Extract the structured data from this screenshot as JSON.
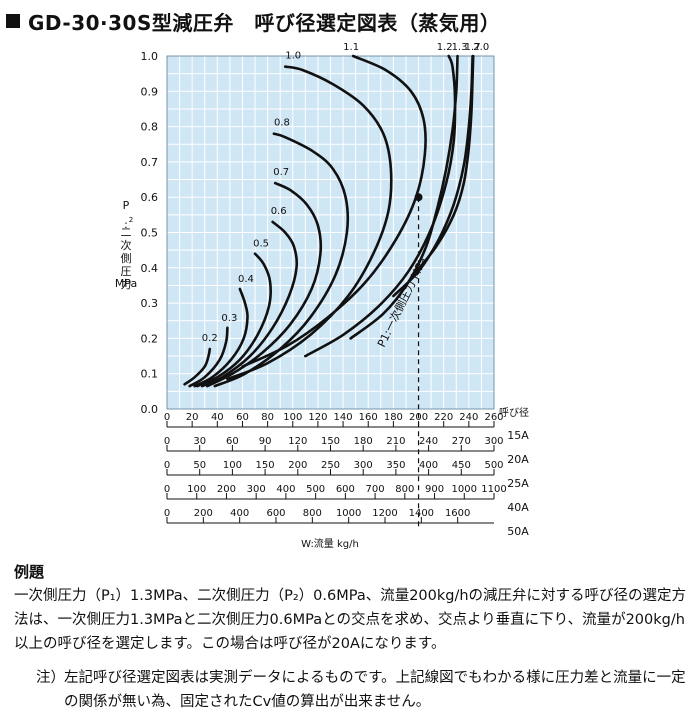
{
  "title": "GD-30·30S型減圧弁　呼び径選定図表（蒸気用）",
  "chart_data": {
    "type": "line",
    "y_axis": {
      "label_chars": [
        "P",
        "2",
        ":",
        "二",
        "次",
        "側",
        "圧",
        "力"
      ],
      "unit": "MPa",
      "range": [
        0,
        1.0
      ],
      "ticks": [
        0,
        0.1,
        0.2,
        0.3,
        0.4,
        0.5,
        0.6,
        0.7,
        0.8,
        0.9,
        1.0
      ]
    },
    "x_axis": {
      "label": "W:流量 kg/h",
      "size_label": "呼び径",
      "scales": [
        {
          "size": "15A",
          "max": 260,
          "ticks": [
            0,
            20,
            40,
            60,
            80,
            100,
            120,
            140,
            160,
            180,
            200,
            220,
            240,
            260
          ]
        },
        {
          "size": "20A",
          "max": 300,
          "ticks": [
            0,
            30,
            60,
            90,
            120,
            150,
            180,
            210,
            240,
            270,
            300
          ]
        },
        {
          "size": "25A",
          "max": 500,
          "ticks": [
            0,
            50,
            100,
            150,
            200,
            250,
            300,
            350,
            400,
            450,
            500
          ]
        },
        {
          "size": "40A",
          "max": 1100,
          "ticks": [
            0,
            100,
            200,
            300,
            400,
            500,
            600,
            700,
            800,
            900,
            1000,
            1100
          ]
        },
        {
          "size": "50A",
          "max": 1800,
          "ticks": [
            0,
            200,
            400,
            600,
            800,
            1000,
            1200,
            1400,
            1600
          ]
        }
      ]
    },
    "series_note": "P1:一次側圧力 MPa",
    "series": [
      {
        "name": "0.2",
        "points": [
          [
            14,
            0.07
          ],
          [
            22,
            0.09
          ],
          [
            30,
            0.12
          ],
          [
            33,
            0.15
          ],
          [
            34,
            0.17
          ]
        ]
      },
      {
        "name": "0.3",
        "points": [
          [
            18,
            0.065
          ],
          [
            30,
            0.09
          ],
          [
            42,
            0.14
          ],
          [
            47,
            0.19
          ],
          [
            48,
            0.23
          ]
        ]
      },
      {
        "name": "0.4",
        "points": [
          [
            22,
            0.065
          ],
          [
            36,
            0.09
          ],
          [
            51,
            0.14
          ],
          [
            61,
            0.2
          ],
          [
            64,
            0.26
          ],
          [
            62,
            0.3
          ],
          [
            58,
            0.34
          ]
        ]
      },
      {
        "name": "0.5",
        "points": [
          [
            24,
            0.065
          ],
          [
            40,
            0.09
          ],
          [
            58,
            0.14
          ],
          [
            72,
            0.21
          ],
          [
            81,
            0.29
          ],
          [
            82,
            0.36
          ],
          [
            77,
            0.41
          ],
          [
            70,
            0.44
          ]
        ]
      },
      {
        "name": "0.6",
        "points": [
          [
            28,
            0.065
          ],
          [
            44,
            0.09
          ],
          [
            66,
            0.15
          ],
          [
            84,
            0.23
          ],
          [
            97,
            0.32
          ],
          [
            103,
            0.4
          ],
          [
            101,
            0.46
          ],
          [
            94,
            0.5
          ],
          [
            84,
            0.53
          ]
        ]
      },
      {
        "name": "0.7",
        "points": [
          [
            32,
            0.065
          ],
          [
            52,
            0.1
          ],
          [
            76,
            0.16
          ],
          [
            98,
            0.24
          ],
          [
            115,
            0.34
          ],
          [
            122,
            0.44
          ],
          [
            120,
            0.52
          ],
          [
            111,
            0.58
          ],
          [
            98,
            0.62
          ],
          [
            86,
            0.64
          ]
        ]
      },
      {
        "name": "0.8",
        "points": [
          [
            38,
            0.065
          ],
          [
            62,
            0.1
          ],
          [
            90,
            0.17
          ],
          [
            114,
            0.26
          ],
          [
            134,
            0.38
          ],
          [
            143,
            0.5
          ],
          [
            142,
            0.6
          ],
          [
            132,
            0.68
          ],
          [
            116,
            0.73
          ],
          [
            94,
            0.77
          ],
          [
            85,
            0.78
          ]
        ]
      },
      {
        "name": "1.0",
        "points": [
          [
            48,
            0.085
          ],
          [
            80,
            0.13
          ],
          [
            114,
            0.21
          ],
          [
            144,
            0.32
          ],
          [
            164,
            0.44
          ],
          [
            176,
            0.56
          ],
          [
            178,
            0.68
          ],
          [
            172,
            0.78
          ],
          [
            156,
            0.86
          ],
          [
            132,
            0.92
          ],
          [
            108,
            0.96
          ],
          [
            94,
            0.97
          ]
        ]
      },
      {
        "name": "1.1",
        "points": [
          [
            60,
            0.12
          ],
          [
            96,
            0.18
          ],
          [
            128,
            0.26
          ],
          [
            158,
            0.36
          ],
          [
            182,
            0.48
          ],
          [
            198,
            0.6
          ],
          [
            205,
            0.72
          ],
          [
            204,
            0.82
          ],
          [
            194,
            0.9
          ],
          [
            174,
            0.96
          ],
          [
            148,
            1.0
          ]
        ]
      },
      {
        "name": "1.2",
        "points": [
          [
            110,
            0.15
          ],
          [
            140,
            0.21
          ],
          [
            168,
            0.29
          ],
          [
            192,
            0.39
          ],
          [
            210,
            0.51
          ],
          [
            222,
            0.64
          ],
          [
            228,
            0.76
          ],
          [
            229,
            0.88
          ],
          [
            227,
            0.97
          ],
          [
            224,
            1.0
          ]
        ]
      },
      {
        "name": "1.3",
        "points": [
          [
            146,
            0.2
          ],
          [
            172,
            0.27
          ],
          [
            192,
            0.36
          ],
          [
            206,
            0.46
          ],
          [
            215,
            0.57
          ],
          [
            222,
            0.68
          ],
          [
            227,
            0.79
          ],
          [
            230,
            0.9
          ],
          [
            231,
            1.0
          ]
        ]
      },
      {
        "name": "1.7",
        "points": [
          [
            180,
            0.32
          ],
          [
            200,
            0.39
          ],
          [
            216,
            0.48
          ],
          [
            228,
            0.58
          ],
          [
            236,
            0.69
          ],
          [
            240,
            0.8
          ],
          [
            242,
            0.9
          ],
          [
            243,
            1.0
          ]
        ]
      },
      {
        "name": "2.0",
        "points": [
          [
            196,
            0.38
          ],
          [
            214,
            0.46
          ],
          [
            228,
            0.55
          ],
          [
            236,
            0.64
          ],
          [
            240,
            0.74
          ],
          [
            242,
            0.84
          ],
          [
            243,
            0.94
          ],
          [
            243.5,
            1.0
          ]
        ]
      }
    ],
    "example_point": {
      "x": 200,
      "y": 0.6
    },
    "grid": true
  },
  "example": {
    "heading": "例題",
    "body": "一次側圧力（P₁）1.3MPa、二次側圧力（P₂）0.6MPa、流量200kg/hの減圧弁に対する呼び径の選定方法は、一次側圧力1.3MPaと二次側圧力0.6MPaとの交点を求め、交点より垂直に下り、流量が200kg/h以上の呼び径を選定します。この場合は呼び径が20Aになります。"
  },
  "note": {
    "mark": "注）",
    "body": "左記呼び径選定図表は実測データによるものです。上記線図でもわかる様に圧力差と流量に一定の関係が無い為、固定されたCv値の算出が出来ません。"
  }
}
